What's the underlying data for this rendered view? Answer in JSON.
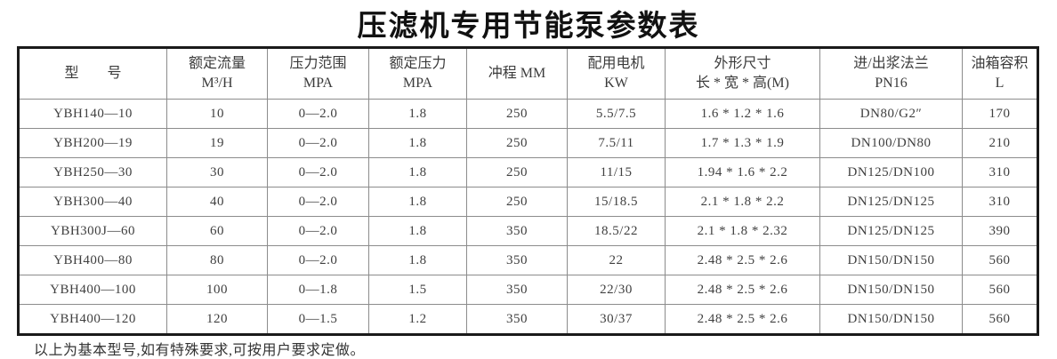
{
  "title": "压滤机专用节能泵参数表",
  "table": {
    "columns": [
      {
        "lines": [
          "型　　号"
        ]
      },
      {
        "lines": [
          "额定流量",
          "M³/H"
        ]
      },
      {
        "lines": [
          "压力范围",
          "MPA"
        ]
      },
      {
        "lines": [
          "额定压力",
          "MPA"
        ]
      },
      {
        "lines": [
          "冲程 MM"
        ]
      },
      {
        "lines": [
          "配用电机",
          "KW"
        ]
      },
      {
        "lines": [
          "外形尺寸",
          "长 * 宽 * 高(M)"
        ]
      },
      {
        "lines": [
          "进/出浆法兰",
          "PN16"
        ]
      },
      {
        "lines": [
          "油箱容积",
          "L"
        ]
      }
    ],
    "rows": [
      [
        "YBH140—10",
        "10",
        "0—2.0",
        "1.8",
        "250",
        "5.5/7.5",
        "1.6 * 1.2 * 1.6",
        "DN80/G2″",
        "170"
      ],
      [
        "YBH200—19",
        "19",
        "0—2.0",
        "1.8",
        "250",
        "7.5/11",
        "1.7 * 1.3 * 1.9",
        "DN100/DN80",
        "210"
      ],
      [
        "YBH250—30",
        "30",
        "0—2.0",
        "1.8",
        "250",
        "11/15",
        "1.94 * 1.6 * 2.2",
        "DN125/DN100",
        "310"
      ],
      [
        "YBH300—40",
        "40",
        "0—2.0",
        "1.8",
        "250",
        "15/18.5",
        "2.1 * 1.8 * 2.2",
        "DN125/DN125",
        "310"
      ],
      [
        "YBH300J—60",
        "60",
        "0—2.0",
        "1.8",
        "350",
        "18.5/22",
        "2.1 * 1.8 * 2.32",
        "DN125/DN125",
        "390"
      ],
      [
        "YBH400—80",
        "80",
        "0—2.0",
        "1.8",
        "350",
        "22",
        "2.48 * 2.5 * 2.6",
        "DN150/DN150",
        "560"
      ],
      [
        "YBH400—100",
        "100",
        "0—1.8",
        "1.5",
        "350",
        "22/30",
        "2.48 * 2.5 * 2.6",
        "DN150/DN150",
        "560"
      ],
      [
        "YBH400—120",
        "120",
        "0—1.5",
        "1.2",
        "350",
        "30/37",
        "2.48 * 2.5 * 2.6",
        "DN150/DN150",
        "560"
      ]
    ]
  },
  "footer_note": "以上为基本型号,如有特殊要求,可按用户要求定做。",
  "colors": {
    "background": "#ffffff",
    "border_outer": "#1a1a1a",
    "border_inner": "#8c8c8c",
    "text": "#3a3a3a",
    "title_text": "#111111"
  }
}
